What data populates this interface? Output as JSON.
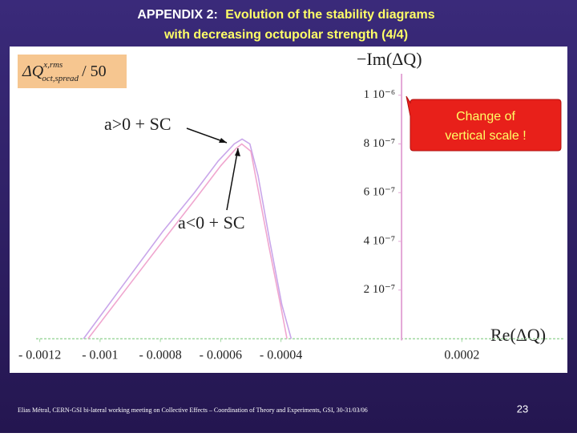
{
  "slide": {
    "title_prefix": "APPENDIX 2:",
    "title_line1": "Evolution of the stability diagrams",
    "title_line2": "with decreasing octupolar strength (4/4)",
    "footer": "Elias Métral, CERN-GSI bi-lateral working meeting on Collective Effects – Coordination of Theory and Experiments, GSI, 30-31/03/06",
    "page_number": "23"
  },
  "chart_data": {
    "type": "line",
    "x_label": "Re(ΔQ)",
    "y_label": "−Im(ΔQ)",
    "callout_lines": [
      "Change of",
      "vertical scale !"
    ],
    "scale_note": {
      "symbol": "ΔQ",
      "superscript": "x,rms",
      "subscript": "oct,spread",
      "suffix": "/ 50"
    },
    "xlim": [
      -0.0013,
      0.00055
    ],
    "xticks": [
      {
        "value": -0.0012,
        "label": "- 0.0012"
      },
      {
        "value": -0.001,
        "label": "- 0.001"
      },
      {
        "value": -0.0008,
        "label": "- 0.0008"
      },
      {
        "value": -0.0006,
        "label": "- 0.0006"
      },
      {
        "value": -0.0004,
        "label": "- 0.0004"
      },
      0.0002
    ],
    "ylim": [
      -1.4e-07,
      1.2e-06
    ],
    "yticks": [
      {
        "value": 2e-07,
        "label": "2 10⁻⁷"
      },
      {
        "value": 4e-07,
        "label": "4 10⁻⁷"
      },
      {
        "value": 6e-07,
        "label": "6 10⁻⁷"
      },
      {
        "value": 8e-07,
        "label": "8 10⁻⁷"
      },
      {
        "value": 1e-06,
        "label": "1 10⁻⁶"
      }
    ],
    "series": [
      {
        "name": "a>0 + SC",
        "color": "#c9a6ea",
        "x": [
          -0.001055,
          -0.000924,
          -0.000792,
          -0.000687,
          -0.000608,
          -0.000555,
          -0.000529,
          -0.000503,
          -0.000476,
          -0.000437,
          -0.000397,
          -0.000366
        ],
        "values": [
          0,
          2.2e-07,
          4.4e-07,
          6e-07,
          7.3e-07,
          8e-07,
          8.2e-07,
          8e-07,
          6.7e-07,
          4e-07,
          1.4e-07,
          0
        ]
      },
      {
        "name": "a<0 + SC",
        "color": "#f0a6cf",
        "x": [
          -0.00104,
          -0.00091,
          -0.00078,
          -0.00068,
          -0.0006,
          -0.00055,
          -0.00053,
          -0.0005,
          -0.00048,
          -0.00044,
          -0.0004,
          -0.00038
        ],
        "values": [
          0,
          2.1e-07,
          4.2e-07,
          5.8e-07,
          7.1e-07,
          7.8e-07,
          8e-07,
          7.7e-07,
          6.4e-07,
          3.8e-07,
          1.3e-07,
          0
        ]
      }
    ]
  }
}
